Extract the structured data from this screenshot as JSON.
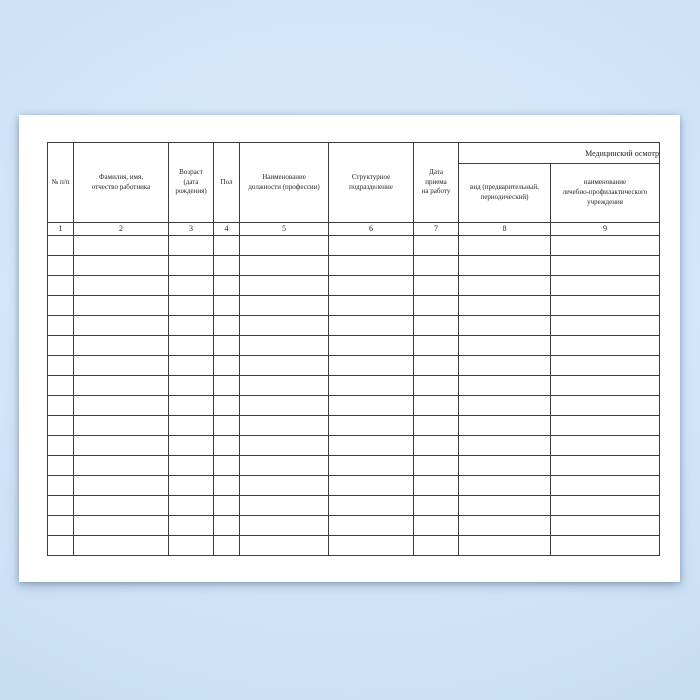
{
  "table": {
    "group_header": "Медицинский осмотр",
    "columns": [
      {
        "num": "1",
        "label": "№ п/п"
      },
      {
        "num": "2",
        "label": "Фамилия, имя,\nотчество работника"
      },
      {
        "num": "3",
        "label": "Возраст\n(дата\nрождения)"
      },
      {
        "num": "4",
        "label": "Пол"
      },
      {
        "num": "5",
        "label": "Наименование\nдолжности (профессии)"
      },
      {
        "num": "6",
        "label": "Структурное\nподразделение"
      },
      {
        "num": "7",
        "label": "Дата\nприема\nна работу"
      },
      {
        "num": "8",
        "label": "вид (предварительный,\nпериодический)"
      },
      {
        "num": "9",
        "label": "наименование\nлечебно-профилактического\nучреждения"
      }
    ],
    "empty_row_count": 16
  },
  "colors": {
    "background_top": "#ddeefd",
    "background_mid": "#d3e7fa",
    "background_edge": "#c7ddf2",
    "paper": "#ffffff",
    "border": "#3c3c3c",
    "text": "#1f1f1f"
  }
}
